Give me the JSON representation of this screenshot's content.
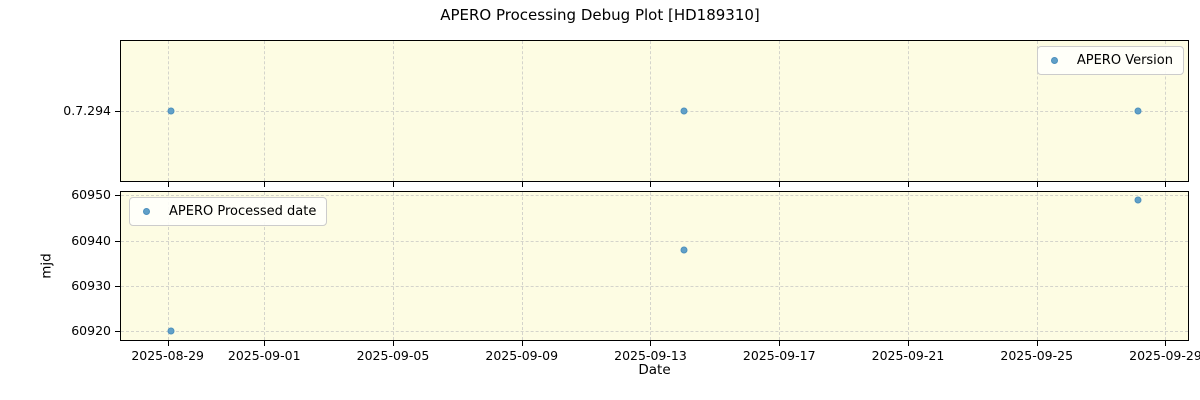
{
  "title": "APERO Processing Debug Plot [HD189310]",
  "colors": {
    "figure_bg": "#ffffff",
    "panel_bg": "#fdfce3",
    "marker": "#61a0c8",
    "marker_edge": "#4d90bd",
    "grid": "#d4d4cb",
    "spine": "#000000",
    "legend_bg": "#fffffc",
    "legend_border": "#cccccc"
  },
  "x_axis": {
    "label": "Date",
    "xlim_days": [
      -1.45,
      31.7
    ],
    "ticks": [
      {
        "x": 0,
        "label": "2025-08-29"
      },
      {
        "x": 3,
        "label": "2025-09-01"
      },
      {
        "x": 7,
        "label": "2025-09-05"
      },
      {
        "x": 11,
        "label": "2025-09-09"
      },
      {
        "x": 15,
        "label": "2025-09-13"
      },
      {
        "x": 19,
        "label": "2025-09-17"
      },
      {
        "x": 23,
        "label": "2025-09-21"
      },
      {
        "x": 27,
        "label": "2025-09-25"
      },
      {
        "x": 31,
        "label": "2025-09-29"
      }
    ]
  },
  "chart_data": [
    {
      "type": "scatter",
      "name": "apero-version-panel",
      "legend": {
        "label": "APERO Version",
        "position": "top-right"
      },
      "ylabel": "",
      "ylim": [
        0,
        1
      ],
      "y_ticks": [
        {
          "y": 0.5,
          "label": "0.7.294"
        }
      ],
      "show_x_tick_labels": false,
      "points": [
        {
          "x": 0.1,
          "y": 0.5,
          "date": "2025-08-29",
          "value": "0.7.294"
        },
        {
          "x": 16.05,
          "y": 0.5,
          "date": "2025-09-14",
          "value": "0.7.294"
        },
        {
          "x": 30.15,
          "y": 0.5,
          "date": "2025-09-28",
          "value": "0.7.294"
        }
      ]
    },
    {
      "type": "scatter",
      "name": "apero-processed-date-panel",
      "legend": {
        "label": "APERO Processed date",
        "position": "top-left"
      },
      "ylabel": "mjd",
      "ylim": [
        60917.95,
        60950.75
      ],
      "y_ticks": [
        {
          "y": 60920,
          "label": "60920"
        },
        {
          "y": 60930,
          "label": "60930"
        },
        {
          "y": 60940,
          "label": "60940"
        },
        {
          "y": 60950,
          "label": "60950"
        }
      ],
      "show_x_tick_labels": true,
      "points": [
        {
          "x": 0.1,
          "y": 60919.85,
          "date": "2025-08-29",
          "value": 60919.85
        },
        {
          "x": 16.05,
          "y": 60937.9,
          "date": "2025-09-14",
          "value": 60937.9
        },
        {
          "x": 30.15,
          "y": 60949.0,
          "date": "2025-09-28",
          "value": 60949.0
        }
      ]
    }
  ]
}
